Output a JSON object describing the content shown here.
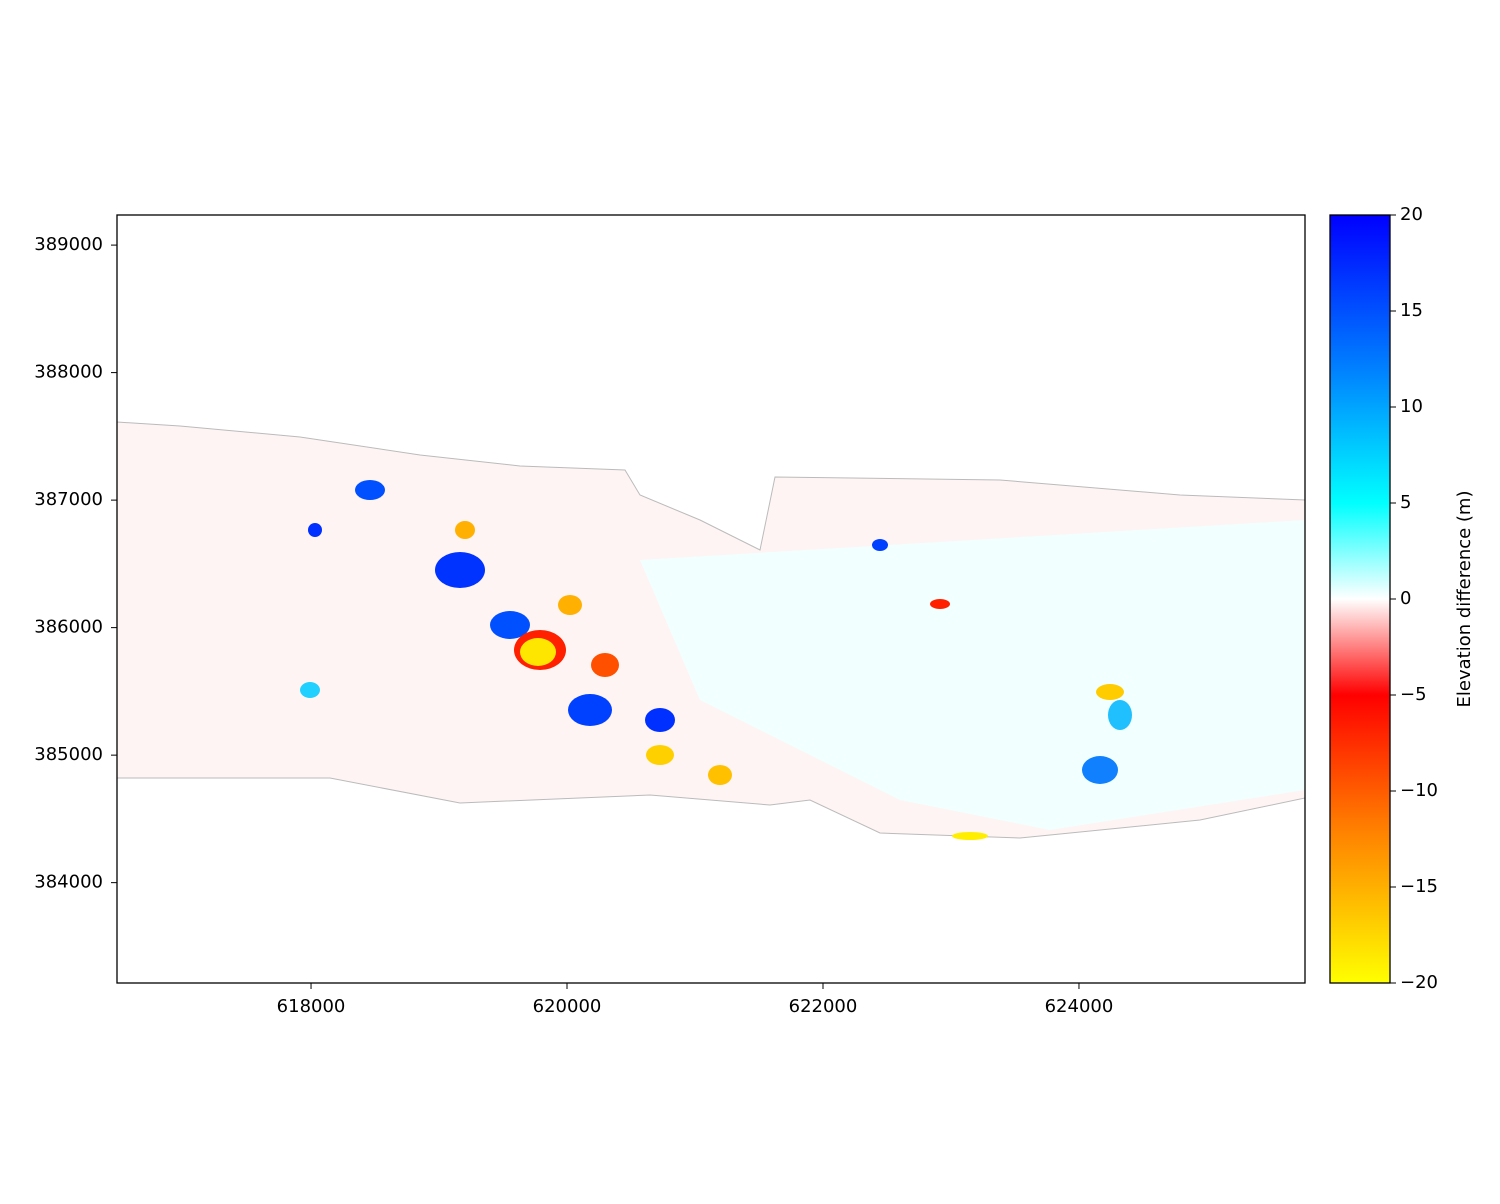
{
  "chart_data": {
    "type": "raster",
    "xlim": [
      616484,
      625766
    ],
    "ylim": [
      383213,
      389236
    ],
    "xticks": [
      618000,
      620000,
      622000,
      624000
    ],
    "yticks": [
      384000,
      385000,
      386000,
      387000,
      388000,
      389000
    ],
    "colorbar": {
      "label": "Elevation difference (m)",
      "lim": [
        -20,
        20
      ],
      "ticks": [
        {
          "value": -20,
          "label": "−20"
        },
        {
          "value": -15,
          "label": "−15"
        },
        {
          "value": -10,
          "label": "−10"
        },
        {
          "value": -5,
          "label": "−5"
        },
        0,
        5,
        10,
        15,
        20
      ],
      "colormap": [
        {
          "value": -20,
          "color": "#ffff00"
        },
        {
          "value": -12,
          "color": "#ff8000"
        },
        {
          "value": -5,
          "color": "#ff0000"
        },
        {
          "value": 0,
          "color": "#ffffff"
        },
        {
          "value": 5,
          "color": "#00ffff"
        },
        {
          "value": 12,
          "color": "#0080ff"
        },
        {
          "value": 20,
          "color": "#0000ff"
        }
      ]
    }
  }
}
